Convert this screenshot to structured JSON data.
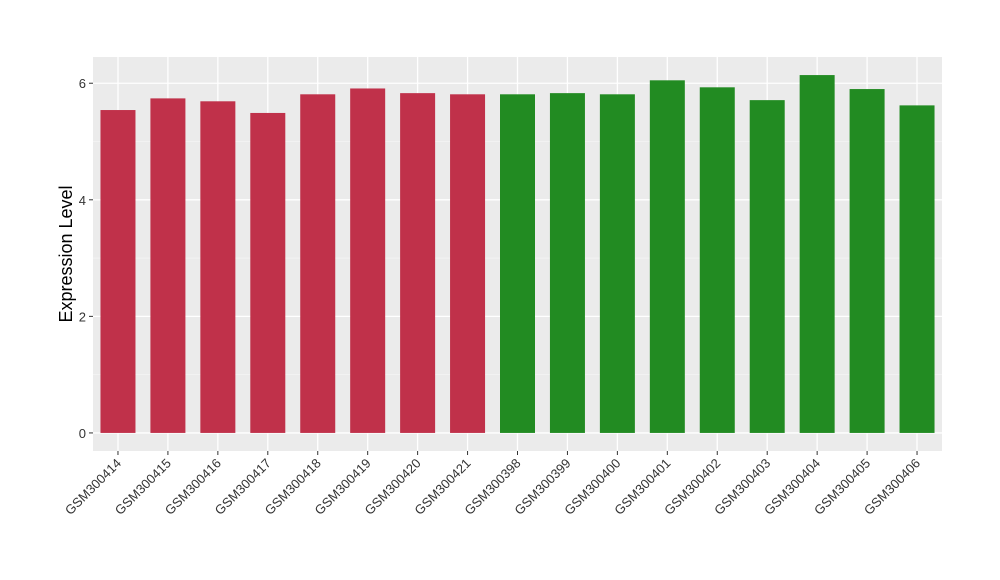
{
  "chart_data": {
    "type": "bar",
    "title": "",
    "xlabel": "",
    "ylabel": "Expression Level",
    "ylim": [
      -0.31,
      6.45
    ],
    "yticks": [
      0,
      2,
      4,
      6
    ],
    "grid": true,
    "categories": [
      "GSM300414",
      "GSM300415",
      "GSM300416",
      "GSM300417",
      "GSM300418",
      "GSM300419",
      "GSM300420",
      "GSM300421",
      "GSM300398",
      "GSM300399",
      "GSM300400",
      "GSM300401",
      "GSM300402",
      "GSM300403",
      "GSM300404",
      "GSM300405",
      "GSM300406"
    ],
    "values": [
      5.54,
      5.74,
      5.69,
      5.49,
      5.81,
      5.91,
      5.83,
      5.81,
      5.81,
      5.83,
      5.81,
      6.05,
      5.93,
      5.71,
      6.14,
      5.9,
      5.62
    ],
    "groups": [
      0,
      0,
      0,
      0,
      0,
      0,
      0,
      0,
      1,
      1,
      1,
      1,
      1,
      1,
      1,
      1,
      1
    ],
    "colors": [
      "#C0314A",
      "#228B22"
    ]
  }
}
